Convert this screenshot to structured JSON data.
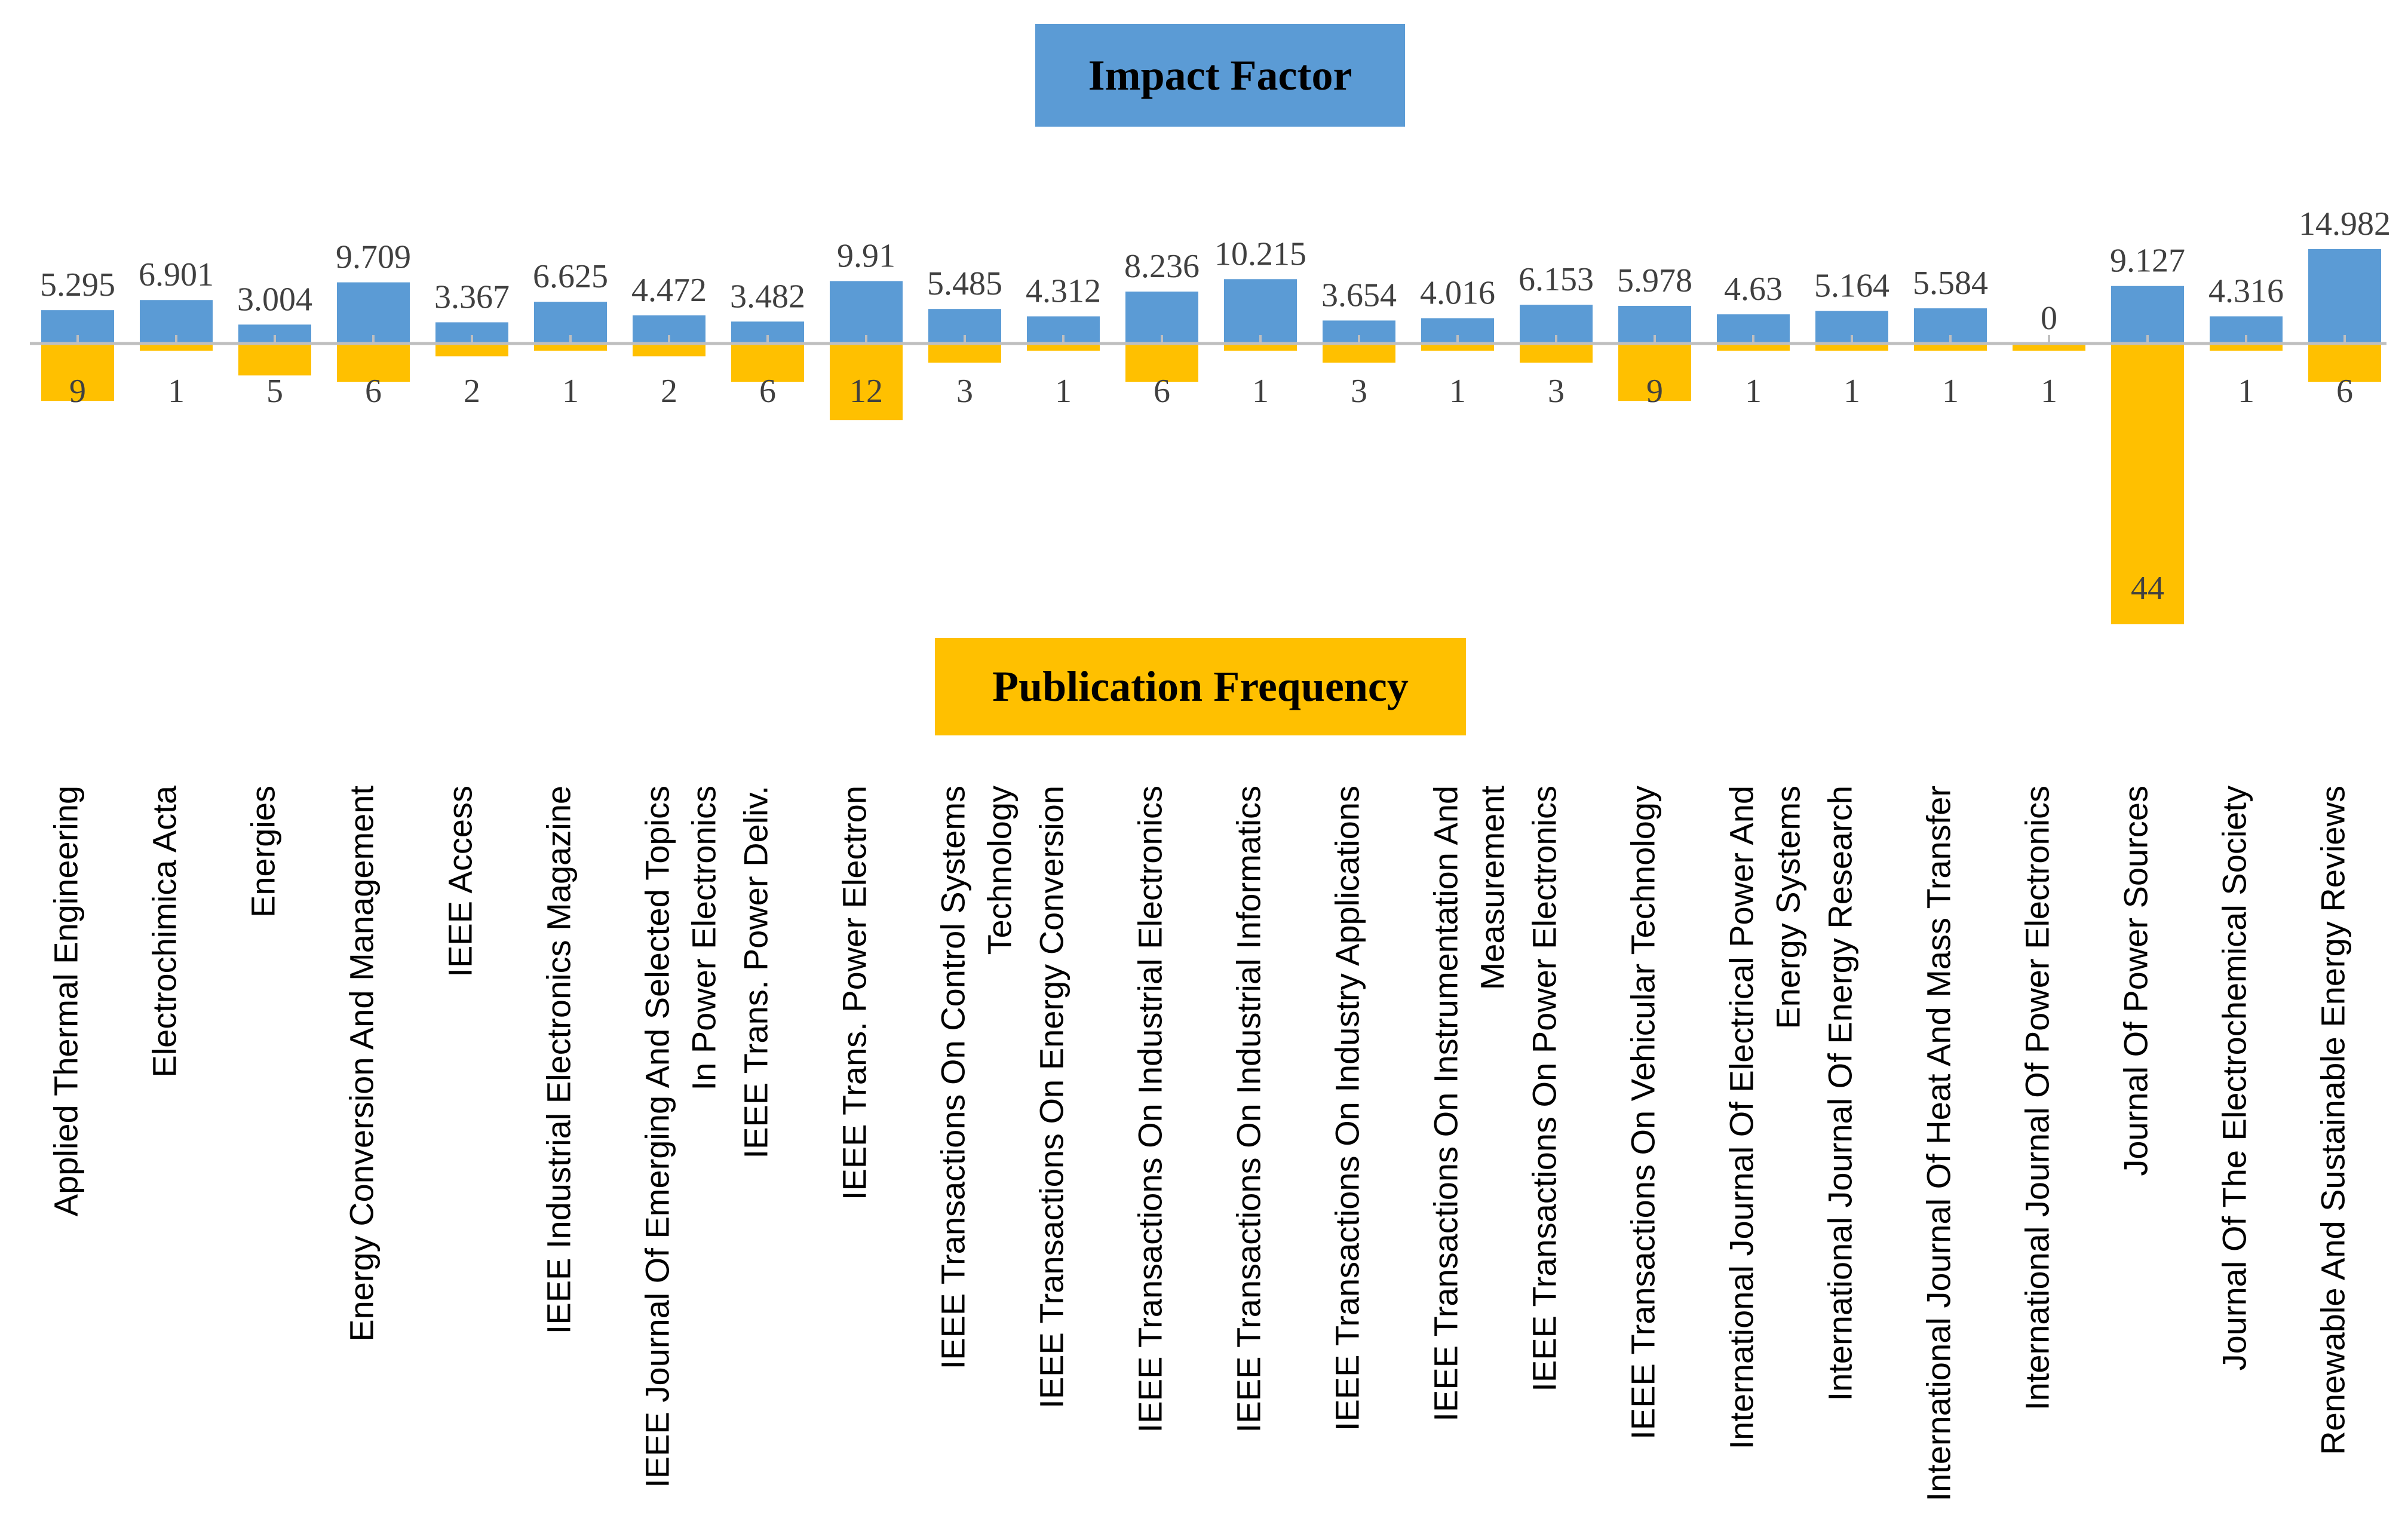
{
  "colors": {
    "impact": "#5B9BD5",
    "frequency": "#FFC000",
    "axis": "#BFBFBF",
    "label": "#404040"
  },
  "legend": {
    "impact_label": "Impact Factor",
    "frequency_label": "Publication Frequency"
  },
  "chart_data": {
    "type": "bar",
    "title": "",
    "categories": [
      [
        "Applied Thermal Engineering"
      ],
      [
        "Electrochimica Acta"
      ],
      [
        "Energies"
      ],
      [
        "Energy Conversion And Management"
      ],
      [
        "IEEE Access"
      ],
      [
        "IEEE Industrial Electronics Magazine"
      ],
      [
        "IEEE Journal Of Emerging And Selected Topics",
        "In Power Electronics"
      ],
      [
        "IEEE Trans. Power Deliv."
      ],
      [
        "IEEE Trans. Power Electron"
      ],
      [
        "IEEE Transactions On Control Systems",
        "Technology"
      ],
      [
        "IEEE Transactions On Energy Conversion"
      ],
      [
        "IEEE Transactions On Industrial Electronics"
      ],
      [
        "IEEE Transactions On Industrial Informatics"
      ],
      [
        "IEEE Transactions On Industry Applications"
      ],
      [
        "IEEE Transactions On Instrumentation And",
        "Measurement"
      ],
      [
        "IEEE Transactions On Power Electronics"
      ],
      [
        "IEEE Transactions On Vehicular Technology"
      ],
      [
        "International Journal Of Electrical Power And",
        "Energy Systems"
      ],
      [
        "International Journal Of Energy Research"
      ],
      [
        "International Journal Of Heat And Mass Transfer"
      ],
      [
        "International Journal Of Power Electronics"
      ],
      [
        "Journal Of Power Sources"
      ],
      [
        "Journal Of The Electrochemical Society"
      ],
      [
        "Renewable And Sustainable Energy Reviews"
      ]
    ],
    "series": [
      {
        "name": "Impact Factor",
        "direction": "up",
        "values": [
          5.295,
          6.901,
          3.004,
          9.709,
          3.367,
          6.625,
          4.472,
          3.482,
          9.91,
          5.485,
          4.312,
          8.236,
          10.215,
          3.654,
          4.016,
          6.153,
          5.978,
          4.63,
          5.164,
          5.584,
          0,
          9.127,
          4.316,
          14.982
        ],
        "labels": [
          "5.295",
          "6.901",
          "3.004",
          "9.709",
          "3.367",
          "6.625",
          "4.472",
          "3.482",
          "9.91",
          "5.485",
          "4.312",
          "8.236",
          "10.215",
          "3.654",
          "4.016",
          "6.153",
          "5.978",
          "4.63",
          "5.164",
          "5.584",
          "0",
          "9.127",
          "4.316",
          "14.982"
        ]
      },
      {
        "name": "Publication Frequency",
        "direction": "down",
        "values": [
          9,
          1,
          5,
          6,
          2,
          1,
          2,
          6,
          12,
          3,
          1,
          6,
          1,
          3,
          1,
          3,
          9,
          1,
          1,
          1,
          1,
          44,
          1,
          6
        ],
        "labels": [
          "9",
          "1",
          "5",
          "6",
          "2",
          "1",
          "2",
          "6",
          "12",
          "3",
          "1",
          "6",
          "1",
          "3",
          "1",
          "3",
          "9",
          "1",
          "1",
          "1",
          "1",
          "44",
          "1",
          "6"
        ]
      }
    ],
    "grid": false,
    "legend_position": "top-center"
  }
}
